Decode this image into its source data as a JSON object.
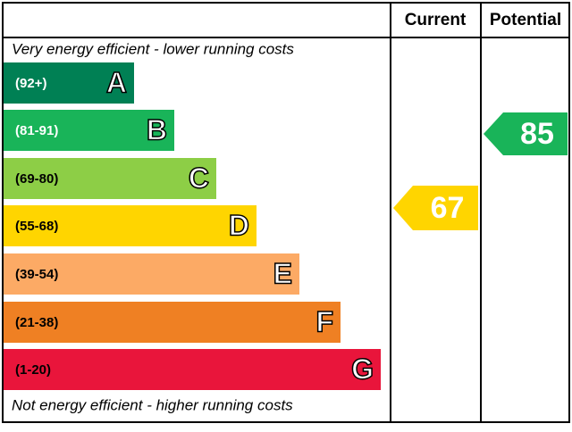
{
  "header": {
    "current": "Current",
    "potential": "Potential"
  },
  "top_note": "Very energy efficient - lower running costs",
  "bottom_note": "Not energy efficient - higher running costs",
  "bands": [
    {
      "range": "(92+)",
      "letter": "A",
      "color": "#008054"
    },
    {
      "range": "(81-91)",
      "letter": "B",
      "color": "#19b459"
    },
    {
      "range": "(69-80)",
      "letter": "C",
      "color": "#8dce46"
    },
    {
      "range": "(55-68)",
      "letter": "D",
      "color": "#ffd500"
    },
    {
      "range": "(39-54)",
      "letter": "E",
      "color": "#fcaa65"
    },
    {
      "range": "(21-38)",
      "letter": "F",
      "color": "#ef8023"
    },
    {
      "range": "(1-20)",
      "letter": "G",
      "color": "#e9153b"
    }
  ],
  "current": {
    "value": "67",
    "color": "#ffd500"
  },
  "potential": {
    "value": "85",
    "color": "#19b459"
  }
}
